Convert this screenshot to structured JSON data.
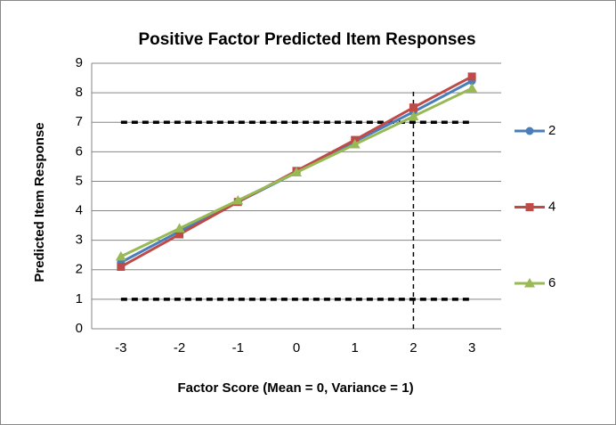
{
  "chart_data": {
    "type": "line",
    "title": "Positive Factor Predicted Item Responses",
    "x_label": "Factor Score (Mean = 0, Variance = 1)",
    "y_label": "Predicted Item Response",
    "x": [
      -3,
      -2,
      -1,
      0,
      1,
      2,
      3
    ],
    "xlim": [
      -3.5,
      3.5
    ],
    "xticks": [
      -3,
      -2,
      -1,
      0,
      1,
      2,
      3
    ],
    "ylim": [
      0,
      9
    ],
    "yticks": [
      0,
      1,
      2,
      3,
      4,
      5,
      6,
      7,
      8,
      9
    ],
    "grid": true,
    "legend": "right",
    "series": [
      {
        "name": "2",
        "color": "#4a7ebb",
        "marker": "circle",
        "values": [
          2.25,
          3.3,
          4.3,
          5.3,
          6.35,
          7.35,
          8.4
        ]
      },
      {
        "name": "4",
        "color": "#be4b48",
        "marker": "square",
        "values": [
          2.1,
          3.2,
          4.3,
          5.35,
          6.4,
          7.5,
          8.55
        ]
      },
      {
        "name": "6",
        "color": "#98b954",
        "marker": "triangle",
        "values": [
          2.45,
          3.4,
          4.35,
          5.3,
          6.25,
          7.2,
          8.15
        ]
      }
    ],
    "reference_lines": [
      {
        "x": [
          -3,
          3
        ],
        "y": [
          1,
          1
        ]
      },
      {
        "x": [
          -3,
          3
        ],
        "y": [
          7,
          7
        ]
      },
      {
        "x": [
          2,
          2
        ],
        "y": [
          0,
          8.1
        ]
      }
    ]
  }
}
